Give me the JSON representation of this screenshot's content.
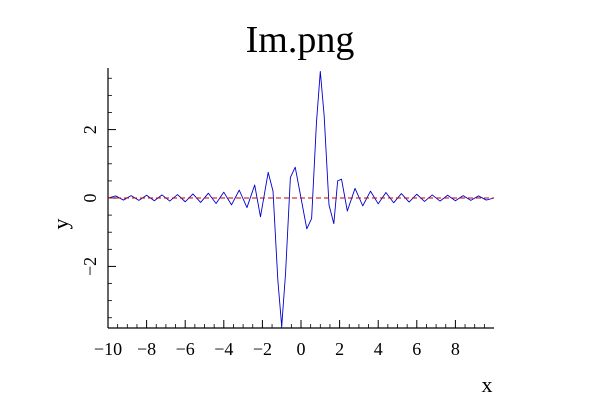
{
  "chart_data": {
    "type": "line",
    "title": "Im.png",
    "xlabel": "x",
    "ylabel": "y",
    "xlim": [
      -10,
      10
    ],
    "ylim": [
      -3.8,
      3.8
    ],
    "x_ticks": [
      -10,
      -8,
      -6,
      -4,
      -2,
      0,
      2,
      4,
      6,
      8
    ],
    "x_tick_labels": [
      "−10",
      "−8",
      "−6",
      "−4",
      "−2",
      "0",
      "2",
      "4",
      "6",
      "8"
    ],
    "y_ticks": [
      -2,
      0,
      2
    ],
    "y_tick_labels": [
      "−2",
      "0",
      "2"
    ],
    "grid": false,
    "series": [
      {
        "color": "#0000cc",
        "style": "solid",
        "points": [
          [
            -10,
            0.0
          ],
          [
            -9.6,
            0.06
          ],
          [
            -9.2,
            -0.06
          ],
          [
            -8.8,
            0.07
          ],
          [
            -8.4,
            -0.07
          ],
          [
            -8.0,
            0.08
          ],
          [
            -7.6,
            -0.08
          ],
          [
            -7.2,
            0.09
          ],
          [
            -6.8,
            -0.09
          ],
          [
            -6.4,
            0.1
          ],
          [
            -6.0,
            -0.11
          ],
          [
            -5.6,
            0.12
          ],
          [
            -5.2,
            -0.13
          ],
          [
            -4.8,
            0.14
          ],
          [
            -4.4,
            -0.16
          ],
          [
            -4.0,
            0.17
          ],
          [
            -3.6,
            -0.2
          ],
          [
            -3.2,
            0.23
          ],
          [
            -2.8,
            -0.28
          ],
          [
            -2.4,
            0.38
          ],
          [
            -2.1,
            -0.55
          ],
          [
            -1.7,
            0.75
          ],
          [
            -1.45,
            0.2
          ],
          [
            -1.2,
            -2.4
          ],
          [
            -1.0,
            -3.75
          ],
          [
            -0.8,
            -2.2
          ],
          [
            -0.55,
            0.6
          ],
          [
            -0.3,
            0.9
          ],
          [
            0.0,
            0.0
          ],
          [
            0.3,
            -0.9
          ],
          [
            0.55,
            -0.6
          ],
          [
            0.8,
            2.2
          ],
          [
            1.0,
            3.7
          ],
          [
            1.2,
            2.4
          ],
          [
            1.45,
            -0.2
          ],
          [
            1.7,
            -0.75
          ],
          [
            1.9,
            0.5
          ],
          [
            2.1,
            0.55
          ],
          [
            2.4,
            -0.38
          ],
          [
            2.8,
            0.28
          ],
          [
            3.2,
            -0.23
          ],
          [
            3.6,
            0.2
          ],
          [
            4.0,
            -0.17
          ],
          [
            4.4,
            0.16
          ],
          [
            4.8,
            -0.14
          ],
          [
            5.2,
            0.13
          ],
          [
            5.6,
            -0.12
          ],
          [
            6.0,
            0.11
          ],
          [
            6.4,
            -0.1
          ],
          [
            6.8,
            0.09
          ],
          [
            7.2,
            -0.09
          ],
          [
            7.6,
            0.08
          ],
          [
            8.0,
            -0.08
          ],
          [
            8.4,
            0.07
          ],
          [
            8.8,
            -0.07
          ],
          [
            9.2,
            0.06
          ],
          [
            9.6,
            -0.06
          ],
          [
            10.0,
            0.0
          ]
        ]
      },
      {
        "color": "#cc0000",
        "style": "dashed",
        "points": [
          [
            -10,
            0
          ],
          [
            10,
            0
          ]
        ]
      }
    ]
  }
}
